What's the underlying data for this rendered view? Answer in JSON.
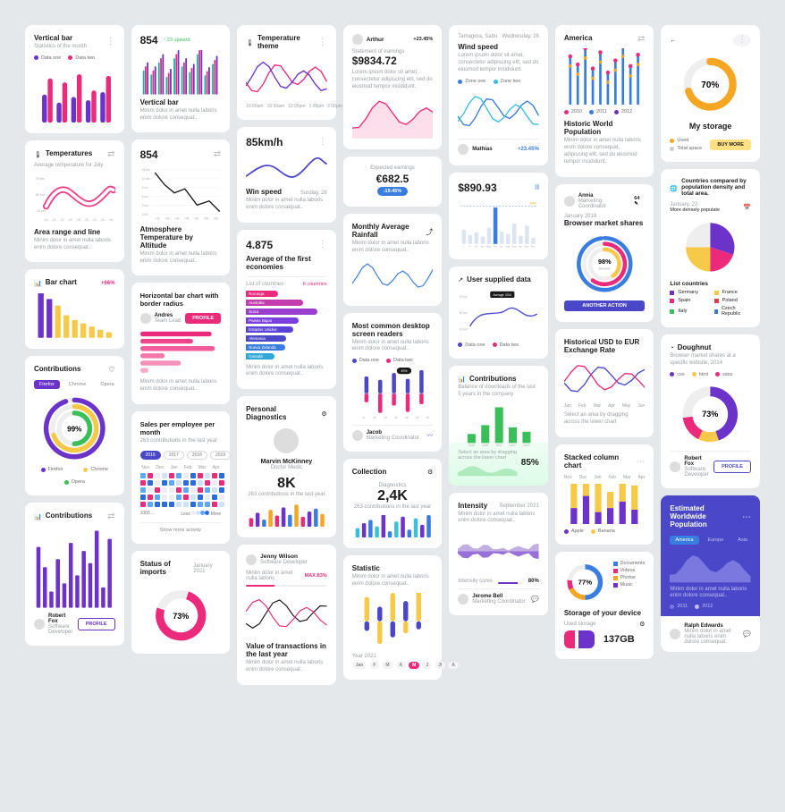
{
  "colors": {
    "pink": "#ec2a7b",
    "magenta": "#d8228a",
    "orange": "#f5a623",
    "yellow": "#f7c948",
    "purple": "#6b33c9",
    "deepPurple": "#4a2a99",
    "violet": "#7b3fe0",
    "indigo": "#4a48c8",
    "blue": "#3a7de0",
    "cyan": "#3ac0de",
    "teal": "#14b8a6",
    "green": "#3bbf5a",
    "lime": "#a3d94a",
    "red": "#e0394b",
    "grey": "#d7d9dc",
    "lightGrey": "#eceef1",
    "text": "#1b1b1b",
    "subtext": "#9aa0a6"
  },
  "c1_verticalBar": {
    "title": "Vertical bar",
    "subtitle": "Statistics of the month",
    "legend": [
      {
        "label": "Data one",
        "color": "#6b33c9"
      },
      {
        "label": "Data two",
        "color": "#ec2a7b"
      }
    ],
    "pairs": [
      {
        "a": 35,
        "b": 55
      },
      {
        "a": 25,
        "b": 50
      },
      {
        "a": 32,
        "b": 60
      },
      {
        "a": 28,
        "b": 40
      },
      {
        "a": 38,
        "b": 58
      }
    ]
  },
  "c2_temperatures": {
    "title": "Temperatures",
    "subtitle": "Average temperature for July",
    "yticks": [
      "70 km",
      "60 km",
      "-10 km"
    ],
    "xticks": [
      "-20",
      "-22",
      "-24",
      "-26",
      "-28",
      "-25",
      "-22",
      "-20",
      "-18"
    ],
    "line_colors": [
      "#ec2a7b",
      "#f5a623"
    ],
    "footer_title": "Area range and line",
    "footer_text": "Minim dolor in amet nulla laboris enim dolore consequat.."
  },
  "c3_barChart": {
    "title": "Bar chart",
    "delta": "+66%",
    "bars": [
      60,
      48,
      40,
      28,
      22,
      18,
      14,
      10,
      7
    ],
    "bar_color": "#f7c948",
    "bar_color2": "#6b33c9"
  },
  "c4_contributions": {
    "title": "Contributions",
    "tabs": [
      "Firefox",
      "Chrome",
      "Opera"
    ],
    "activeTab": 0,
    "main_pct": "99%",
    "ring_colors": [
      "#6b33c9",
      "#f7c948",
      "#3bbf5a"
    ],
    "legend": [
      {
        "label": "Firefox",
        "color": "#6b33c9"
      },
      {
        "label": "Chrome",
        "color": "#f7c948"
      },
      {
        "label": "Opera",
        "color": "#3bbf5a"
      }
    ]
  },
  "c5_contributions2": {
    "title": "Contributions",
    "bars": [
      75,
      50,
      20,
      60,
      30,
      80,
      40,
      70,
      55,
      95,
      25,
      85
    ],
    "bar_color": "#6b33c9",
    "user": "Robert Fox",
    "user_role": "Software Developer",
    "btn": "PROFILE"
  },
  "c6_854": {
    "value": "854",
    "delta": "↑ 23 upward",
    "sparkbars": {
      "colors": [
        "#14b8a6",
        "#ec2a7b",
        "#6b33c9"
      ],
      "heights": [
        30,
        25,
        40,
        22,
        45,
        35,
        28,
        50,
        24,
        38
      ]
    },
    "footer_title": "Vertical bar",
    "footer_text": "Minim dolor in amet nulla laboris enim dolore consequat.."
  },
  "c7_854_2": {
    "value": "854",
    "icon_label": "filter",
    "yticks": [
      "15 km",
      "12 km",
      "9 km",
      "6 km",
      "3 km",
      "0 km"
    ],
    "line_color": "#1b1b1b",
    "xticks": [
      "+33",
      "+35",
      "+40",
      "+45",
      "+50",
      "+55",
      "+60"
    ],
    "footer_title": "Atmosphere Temperature by Altitude",
    "footer_text": "Minim dolor in amet nulla laboris enim dolore consequat.."
  },
  "c8_horizBar": {
    "title": "Horizontal bar chart with border radius",
    "user": "Andres",
    "user_role": "Team Lead",
    "btn": "PROFILE",
    "bars": [
      88,
      65,
      92,
      30,
      50,
      10
    ],
    "bar_color": "#ec2a7b",
    "footer_text": "Minim dolor in amet nulla laboris enim dolore consequat.."
  },
  "c9_salesPerEmp": {
    "title": "Sales per employee per month",
    "subtitle": "263 contributions in the last year",
    "years": [
      "2016",
      "2017",
      "2018",
      "2019"
    ],
    "activeYear": 0,
    "cols": [
      "Nov",
      "Dec",
      "Jan",
      "Feb",
      "Mar",
      "Apr"
    ],
    "grid_colors": [
      "#eceef1",
      "#cfe3ff",
      "#5aa8ff",
      "#2b6be0",
      "#ec2a7b"
    ],
    "legend_labels": [
      "1000....",
      "Less",
      "More"
    ],
    "show_more": "Show more activity"
  },
  "c10_statusImports": {
    "title": "Status of imports",
    "date": "January 2021",
    "donut_pct": "73%",
    "donut_color": "#ec2a7b"
  },
  "c11_tempTheme": {
    "title": "Temperature theme",
    "line_colors": [
      "#ec2a7b",
      "#6b33c9"
    ],
    "xticks": [
      "10:00am",
      "10:30am",
      "12:00pm",
      "1:00pm",
      "2:00pm"
    ]
  },
  "c12_speed": {
    "value": "85km/h",
    "line_color": "#4a48c8",
    "footer_title": "Win speed",
    "date": "Sunday, 28",
    "footer_text": "Minim dolor in amet nulla laboris enim dolore consequat.."
  },
  "c13_avgEconomies": {
    "value": "4.875",
    "title": "Average of the first economies",
    "list_label": "List of countries",
    "countries_count": "8 countries",
    "rows": [
      {
        "label": "Noruega",
        "v": 40,
        "c": "#ec2a7b"
      },
      {
        "label": "Australia",
        "v": 70,
        "c": "#c23cb0"
      },
      {
        "label": "Suiza",
        "v": 88,
        "c": "#9a3ed0"
      },
      {
        "label": "Paises Bajos",
        "v": 65,
        "c": "#7b3fe0"
      },
      {
        "label": "Estados Unidos",
        "v": 58,
        "c": "#5a44d8"
      },
      {
        "label": "Alemania",
        "v": 50,
        "c": "#4a48c8"
      },
      {
        "label": "Nueva Zelanda",
        "v": 48,
        "c": "#3a7de0"
      },
      {
        "label": "Canadá",
        "v": 35,
        "c": "#2da8d8"
      }
    ],
    "footer_text": "Minim dolor in amet nulla laboris enim dolore consequat.."
  },
  "c14_personalDiag": {
    "title": "Personal Diagnostics",
    "user": "Marvin McKinney",
    "user_role": "Doctor Medic",
    "value": "8K",
    "subtitle": "263 contributions in the last year",
    "bar_colors": [
      "#ec2a7b",
      "#6b33c9",
      "#3a7de0",
      "#f5a623"
    ],
    "bars": [
      22,
      35,
      18,
      42,
      28,
      48,
      30,
      55,
      25,
      38,
      45,
      32
    ]
  },
  "c15_jennyWilson": {
    "user": "Jenny Wilson",
    "user_role": "Software Developer",
    "footer_text": "Minim dolor in amet nulla laboris",
    "max_label": "MAX:83%",
    "progress_fill": 35,
    "progress_color": "#ec2a7b",
    "line_colors": [
      "#1b1b1b",
      "#ec2a7b"
    ],
    "footer_title": "Value of transactions in the last year",
    "footer_text2": "Minim dolor in amet nulla laboris enim dolore consequat.."
  },
  "c16_arthur": {
    "user": "Arthur",
    "delta": "+23.45%",
    "label": "Statement of earnings",
    "value": "$9834.72",
    "text": "Lorem ipsum dolor sit amet, consectetur adipiscing elit, sed do eiusmod tempor incididunt.",
    "area_color": "#ec2a7b"
  },
  "c17_expected": {
    "label": "Expected earnings",
    "value": "€682.5",
    "badge": "-19.45%",
    "badge_color": "#3a7de0"
  },
  "c18_monthlyRainfall": {
    "title": "Monthly Average Rainfall",
    "footer_text": "Minim dolor in amet nulla laboris enim dolore consequat..",
    "line_color": "#3a7de0"
  },
  "c19_screenReaders": {
    "title": "Most common desktop screen readers",
    "footer_text": "Minim dolor in amet nulla laboris enim dolore consequat..",
    "legend": [
      {
        "label": "Data one",
        "color": "#4a48c8"
      },
      {
        "label": "Data two",
        "color": "#ec2a7b"
      }
    ],
    "badge": "49%",
    "pair_colors": [
      "#4a48c8",
      "#ec2a7b"
    ],
    "pairs": [
      [
        35,
        18
      ],
      [
        28,
        40
      ],
      [
        42,
        25
      ],
      [
        30,
        38
      ],
      [
        48,
        22
      ]
    ],
    "xticks": [
      "-8",
      "-10",
      "-12",
      "-14",
      "-16",
      "-18",
      "-20"
    ],
    "user": "Jacob",
    "user_role": "Marketing Coordinator"
  },
  "c20_collection": {
    "title": "Collection",
    "label": "Diagnostics",
    "value": "2,4K",
    "subtitle": "263 contributions in the last year",
    "bar_colors": [
      "#3ac0de",
      "#6b33c9",
      "#3a7de0"
    ],
    "bars": [
      12,
      18,
      22,
      14,
      30,
      8,
      20,
      26,
      10,
      24,
      16,
      28
    ]
  },
  "c21_statistic": {
    "title": "Statistic",
    "text": "Minim dolor in amet nulla laboris enim dolore consequat..",
    "bars": [
      {
        "up": 30,
        "down": 12,
        "cu": "#f7c948",
        "cd": "#4a48c8"
      },
      {
        "up": 18,
        "down": 28,
        "cu": "#4a48c8",
        "cd": "#f7c948"
      },
      {
        "up": 35,
        "down": 20,
        "cu": "#f7c948",
        "cd": "#4a48c8"
      },
      {
        "up": 25,
        "down": 15,
        "cu": "#4a48c8",
        "cd": "#f7c948"
      },
      {
        "up": 40,
        "down": 10,
        "cu": "#f7c948",
        "cd": "#4a48c8"
      }
    ],
    "year_label": "Year 2021",
    "months": [
      "Jan",
      "F",
      "M",
      "A",
      "M",
      "J",
      "Jl",
      "A"
    ],
    "activeMonth": 4
  },
  "c22_windSpeed": {
    "location": "Tamagera, Sabu",
    "date": "Wednesday, 28",
    "title": "Wind speed",
    "text": "Lorem ipsum dolor sit amet, consectetur adipiscing elit, sed do eiusmod tempor incididunt.",
    "legend": [
      {
        "label": "Zone one",
        "color": "#3a7de0"
      },
      {
        "label": "Zone two",
        "color": "#3ac0de"
      }
    ],
    "user": "Mathias",
    "delta": "+23.45%"
  },
  "c23_890": {
    "value": "$890.93",
    "max_label": "MAX",
    "bars": [
      35,
      22,
      28,
      18,
      40,
      90,
      30,
      25,
      50,
      20,
      45,
      15
    ],
    "hi_index": 5,
    "bar_color": "#dbe4f0",
    "hi_color": "#3a7de0",
    "xticks": [
      "J",
      "F",
      "M",
      "Apr",
      "May",
      "Jun",
      "Jul",
      "Aug",
      "Sep",
      "Oct",
      "Nov",
      "Dec"
    ]
  },
  "c24_userSupplied": {
    "title": "User supplied data",
    "yticks": [
      "70 km",
      "50 km",
      "10 km"
    ],
    "tooltip": "Average: 2014",
    "line_color": "#4a48c8",
    "legend": [
      {
        "label": "Data one",
        "color": "#4a48c8"
      },
      {
        "label": "Data two",
        "color": "#ec2a7b"
      }
    ]
  },
  "c25_contributions3": {
    "title": "Contributions",
    "text": "Balance of downloads of the last 5 years in the company",
    "bars": [
      20,
      40,
      80,
      35,
      25
    ],
    "bar_color": "#3bbf5a",
    "xticks": [
      "2019",
      "2020",
      "2021",
      "2022",
      "2023"
    ],
    "overlay_text": "Select an area by dragging across the lower chart",
    "overlay_pct": "85%",
    "area_color": "#3bbf5a"
  },
  "c26_intensity": {
    "title": "Intensity",
    "date": "September 2021",
    "text": "Minim dolor in amet nulla laboris enim dolore consequat..",
    "area_colors": [
      "#a88dd6",
      "#6b33c9"
    ],
    "label": "Intensity cores",
    "pct": "80%",
    "user": "Jerome Bell",
    "user_role": "Marketing Coordinator"
  },
  "c27_america": {
    "title": "America",
    "bars": [
      60,
      50,
      70,
      45,
      65,
      40,
      55,
      72,
      48,
      62
    ],
    "bar_colors": [
      "#3a7de0",
      "#f5a623",
      "#ec2a7b"
    ],
    "legend": [
      {
        "label": "2010",
        "color": "#ec2a7b"
      },
      {
        "label": "2011",
        "color": "#3a7de0"
      },
      {
        "label": "2012",
        "color": "#6b33c9"
      }
    ],
    "footer_title": "Historic World Population",
    "footer_text": "Minim dolor in amet nulla laboris enim dolore consequat, adipiscing elit, sed do eiusmod tempor incididunt."
  },
  "c28_annia": {
    "user": "Annia",
    "user_role": "Marketing Coordinator",
    "date": "January 2019",
    "title": "Browser market shares",
    "donut_pct": "98%",
    "donut_label": "Browser",
    "ring_colors": [
      "#3a7de0",
      "#ec2a7b",
      "#f7c948",
      "#3bbf5a"
    ],
    "btn": "ANOTHER ACTION",
    "btn_color": "#4a48c8"
  },
  "c29_usdEur": {
    "title": "Historical USD to EUR Exchange Rate",
    "line_colors": [
      "#4a48c8",
      "#ec2a7b"
    ],
    "xticks": [
      "Jan",
      "Feb",
      "Mar",
      "Apr",
      "May",
      "Jun"
    ],
    "footer_text": "Select an area by dragging across the lower chart"
  },
  "c30_stacked": {
    "title": "Stacked column chart",
    "xticks": [
      "Nov",
      "Dec",
      "Jan",
      "Feb",
      "Mar",
      "Apr"
    ],
    "stacks": [
      [
        30,
        20
      ],
      [
        25,
        35
      ],
      [
        40,
        15
      ],
      [
        20,
        20
      ],
      [
        35,
        28
      ],
      [
        30,
        18
      ]
    ],
    "colors": [
      "#f7c948",
      "#6b33c9"
    ],
    "legend": [
      {
        "label": "Apple",
        "color": "#6b33c9"
      },
      {
        "label": "Banana",
        "color": "#f7c948"
      }
    ]
  },
  "c31_storage": {
    "donut_pct": "77%",
    "donut_colors": [
      "#3a7de0",
      "#f5a623",
      "#ec2a7b"
    ],
    "legend": [
      {
        "label": "Documents",
        "color": "#3a7de0"
      },
      {
        "label": "Videos",
        "color": "#ec2a7b"
      },
      {
        "label": "Photos",
        "color": "#f5a623"
      },
      {
        "label": "Music",
        "color": "#6b33c9"
      }
    ],
    "title": "Storage of your device",
    "sub": "Used storage",
    "bar_colors": [
      "#ec2a7b",
      "#6b33c9"
    ],
    "value": "137GB"
  },
  "c32_myStorage": {
    "donut_pct": "70%",
    "donut_color": "#f5a623",
    "title": "My storage",
    "legend": [
      {
        "label": "Used",
        "color": "#f5a623"
      },
      {
        "label": "Total space",
        "color": "#a0a0a0"
      }
    ],
    "btn": "BUY MORE",
    "btn_bg": "#ffe082"
  },
  "c33_countries": {
    "title": "Countries compared by population density and total area.",
    "date": "January, 22",
    "sub": "More densely populate",
    "pie_slices": [
      {
        "v": 30,
        "c": "#6b33c9"
      },
      {
        "v": 20,
        "c": "#ec2a7b"
      },
      {
        "v": 25,
        "c": "#f7c948"
      },
      {
        "v": 25,
        "c": "#eeeeee"
      }
    ],
    "list_title": "List countries",
    "rows": [
      {
        "label": "Germany",
        "color": "#6b33c9"
      },
      {
        "label": "France",
        "color": "#f7c948"
      },
      {
        "label": "Spain",
        "color": "#ec2a7b"
      },
      {
        "label": "Poland",
        "color": "#e0394b"
      },
      {
        "label": "Italy",
        "color": "#3bbf5a"
      },
      {
        "label": "Czech Republic",
        "color": "#3a7de0"
      }
    ]
  },
  "c34_doughnut": {
    "title": "Doughnut",
    "text": "Browser market shares at a specific website, 2014",
    "legend": [
      {
        "label": "css",
        "color": "#6b33c9"
      },
      {
        "label": "html",
        "color": "#f7c948"
      },
      {
        "label": "sass",
        "color": "#ec2a7b"
      }
    ],
    "donut_pct": "73%",
    "donut_colors": [
      "#6b33c9",
      "#f7c948",
      "#ec2a7b",
      "#eeeeee"
    ],
    "user": "Robert Fox",
    "user_role": "Software Developer",
    "btn": "PROFILE"
  },
  "c35_worldPop": {
    "bg": "#4a48c8",
    "title": "Estimated Worldwide Population",
    "tabs": [
      "America",
      "Europe",
      "Asia"
    ],
    "activeTab": 0,
    "tab_active_bg": "#3a7de0",
    "area_color": "#7b79e0",
    "text": "Minim dolor in amet nulla laboris enim dolore consequat..",
    "legend": [
      {
        "label": "2011",
        "color": "#7b79e0"
      },
      {
        "label": "2012",
        "color": "#bfbef2"
      }
    ],
    "user": "Ralph Edwards",
    "user_role": "",
    "footer_text": "Minim dolor in amet nulla laboris enim dolore consequat."
  }
}
